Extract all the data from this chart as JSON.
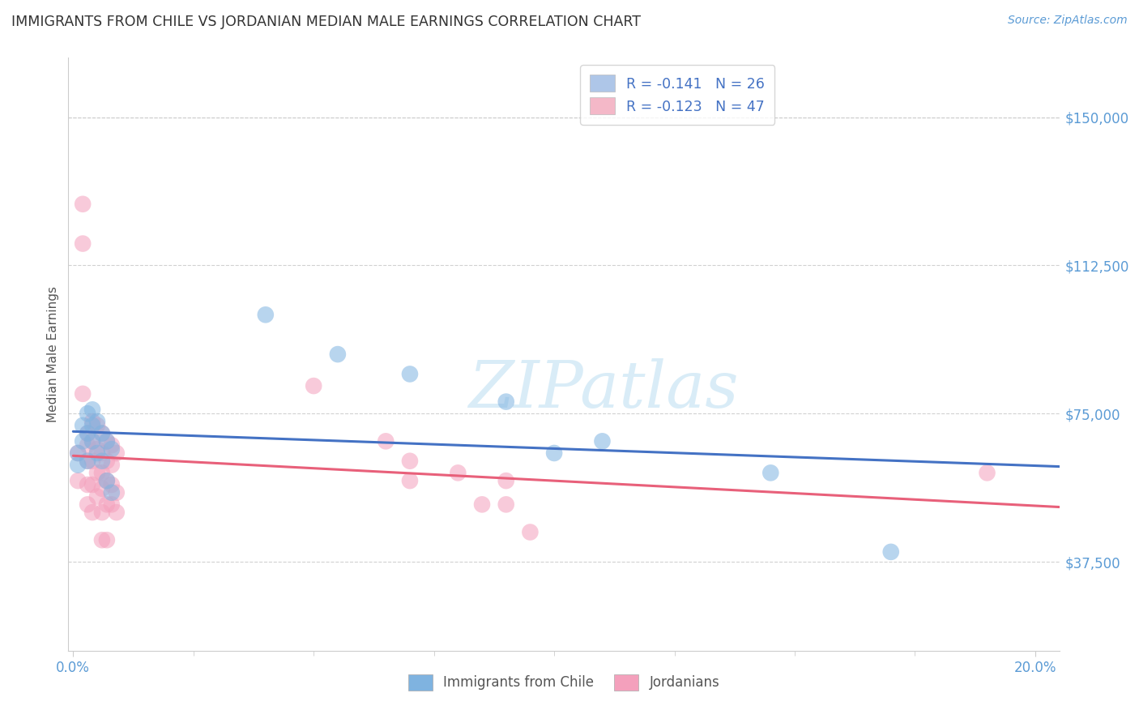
{
  "title": "IMMIGRANTS FROM CHILE VS JORDANIAN MEDIAN MALE EARNINGS CORRELATION CHART",
  "source": "Source: ZipAtlas.com",
  "ylabel": "Median Male Earnings",
  "xlim": [
    -0.001,
    0.205
  ],
  "ylim": [
    15000,
    165000
  ],
  "yticks": [
    37500,
    75000,
    112500,
    150000
  ],
  "ytick_labels": [
    "$37,500",
    "$75,000",
    "$112,500",
    "$150,000"
  ],
  "xtick_labels_shown": [
    "0.0%",
    "20.0%"
  ],
  "xticks_shown": [
    0.0,
    0.2
  ],
  "xticks_minor": [
    0.025,
    0.05,
    0.075,
    0.1,
    0.125,
    0.15,
    0.175
  ],
  "legend_items": [
    {
      "label": "R = -0.141   N = 26",
      "color": "#aec6e8"
    },
    {
      "label": "R = -0.123   N = 47",
      "color": "#f4b8c8"
    }
  ],
  "bottom_legend": [
    "Immigrants from Chile",
    "Jordanians"
  ],
  "blue_scatter_color": "#7fb3e0",
  "pink_scatter_color": "#f4a0bc",
  "blue_line_color": "#4472c4",
  "pink_line_color": "#e8607a",
  "watermark_color": "#d0e8f5",
  "watermark": "ZIPatlas",
  "chile_points": [
    [
      0.001,
      65000
    ],
    [
      0.001,
      62000
    ],
    [
      0.002,
      72000
    ],
    [
      0.002,
      68000
    ],
    [
      0.003,
      75000
    ],
    [
      0.003,
      70000
    ],
    [
      0.003,
      63000
    ],
    [
      0.004,
      76000
    ],
    [
      0.004,
      72000
    ],
    [
      0.004,
      68000
    ],
    [
      0.005,
      73000
    ],
    [
      0.005,
      65000
    ],
    [
      0.006,
      70000
    ],
    [
      0.006,
      63000
    ],
    [
      0.007,
      68000
    ],
    [
      0.007,
      58000
    ],
    [
      0.008,
      66000
    ],
    [
      0.008,
      55000
    ],
    [
      0.04,
      100000
    ],
    [
      0.055,
      90000
    ],
    [
      0.07,
      85000
    ],
    [
      0.09,
      78000
    ],
    [
      0.1,
      65000
    ],
    [
      0.11,
      68000
    ],
    [
      0.145,
      60000
    ],
    [
      0.17,
      40000
    ]
  ],
  "jordan_points": [
    [
      0.001,
      65000
    ],
    [
      0.001,
      58000
    ],
    [
      0.002,
      128000
    ],
    [
      0.002,
      118000
    ],
    [
      0.002,
      80000
    ],
    [
      0.003,
      70000
    ],
    [
      0.003,
      67000
    ],
    [
      0.003,
      63000
    ],
    [
      0.003,
      57000
    ],
    [
      0.003,
      52000
    ],
    [
      0.004,
      73000
    ],
    [
      0.004,
      68000
    ],
    [
      0.004,
      63000
    ],
    [
      0.004,
      57000
    ],
    [
      0.004,
      50000
    ],
    [
      0.005,
      72000
    ],
    [
      0.005,
      66000
    ],
    [
      0.005,
      60000
    ],
    [
      0.005,
      54000
    ],
    [
      0.006,
      70000
    ],
    [
      0.006,
      65000
    ],
    [
      0.006,
      60000
    ],
    [
      0.006,
      56000
    ],
    [
      0.006,
      50000
    ],
    [
      0.006,
      43000
    ],
    [
      0.007,
      68000
    ],
    [
      0.007,
      63000
    ],
    [
      0.007,
      58000
    ],
    [
      0.007,
      52000
    ],
    [
      0.007,
      43000
    ],
    [
      0.008,
      67000
    ],
    [
      0.008,
      62000
    ],
    [
      0.008,
      57000
    ],
    [
      0.008,
      52000
    ],
    [
      0.009,
      65000
    ],
    [
      0.009,
      55000
    ],
    [
      0.009,
      50000
    ],
    [
      0.05,
      82000
    ],
    [
      0.065,
      68000
    ],
    [
      0.07,
      63000
    ],
    [
      0.07,
      58000
    ],
    [
      0.08,
      60000
    ],
    [
      0.085,
      52000
    ],
    [
      0.09,
      58000
    ],
    [
      0.09,
      52000
    ],
    [
      0.095,
      45000
    ],
    [
      0.19,
      60000
    ]
  ],
  "background_color": "#ffffff",
  "grid_color": "#cccccc",
  "axis_color": "#cccccc",
  "text_color": "#555555",
  "title_color": "#333333",
  "blue_tick_color": "#5b9bd5",
  "marker_size": 220
}
